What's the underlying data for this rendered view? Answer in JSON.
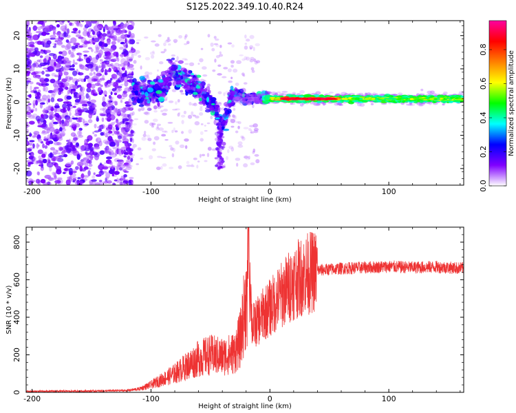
{
  "chart_data": [
    {
      "type": "heatmap",
      "title": "S125.2022.349.10.40.R24",
      "xlabel": "Height of straight line (km)",
      "ylabel": "Frequency (Hz)",
      "xlim": [
        -205,
        163
      ],
      "ylim": [
        -25,
        24.5
      ],
      "xticks": [
        -200,
        -100,
        0,
        100
      ],
      "yticks": [
        20,
        10,
        0,
        -10,
        -20
      ],
      "colorbar": {
        "label": "Normalized spectral amplitude",
        "range": [
          0,
          0.97
        ],
        "ticks": [
          "0.0",
          "0.2",
          "0.4",
          "0.6",
          "0.8"
        ],
        "tick_values": [
          0,
          0.2,
          0.4,
          0.6,
          0.8
        ],
        "colormap": [
          "#ffffff",
          "#8000ff",
          "#0000ff",
          "#00ffff",
          "#00ff00",
          "#ffff00",
          "#ff8000",
          "#ff0000",
          "#ff00a0"
        ]
      },
      "features": {
        "noise_region_x": [
          -205,
          -115
        ],
        "dispersive_arc": {
          "x": [
            -115,
            -100,
            -90,
            -82,
            -75,
            -68,
            -60,
            -52,
            -45,
            -40,
            -35,
            -30,
            -25,
            -20,
            -10,
            0
          ],
          "y": [
            3,
            3,
            4,
            10,
            7,
            6,
            4,
            1,
            -3,
            -8,
            -2,
            3,
            2,
            1,
            1.5,
            1
          ]
        },
        "carrier_line": {
          "x": [
            0,
            163
          ],
          "y": [
            1,
            1
          ],
          "peak_value": 0.95
        }
      }
    },
    {
      "type": "line",
      "title": "",
      "xlabel": "Height of straight line (km)",
      "ylabel": "SNR (10 * v/v)",
      "xlim": [
        -205,
        163
      ],
      "ylim": [
        0,
        880
      ],
      "xticks": [
        -200,
        -100,
        0,
        100
      ],
      "yticks": [
        0,
        200,
        400,
        600,
        800
      ],
      "color": "#ee3333",
      "series": [
        {
          "x": [
            -205,
            -150,
            -120,
            -110,
            -100,
            -90,
            -80,
            -70,
            -60,
            -50,
            -40,
            -30,
            -25,
            -20,
            -18,
            -15,
            -10,
            -5,
            0,
            10,
            20,
            30,
            40,
            50,
            60,
            80,
            100,
            120,
            140,
            163
          ],
          "values": [
            5,
            7,
            10,
            18,
            40,
            70,
            100,
            140,
            180,
            200,
            190,
            210,
            280,
            500,
            880,
            350,
            380,
            420,
            450,
            520,
            590,
            630,
            650,
            655,
            660,
            665,
            670,
            665,
            668,
            660
          ]
        }
      ]
    }
  ]
}
